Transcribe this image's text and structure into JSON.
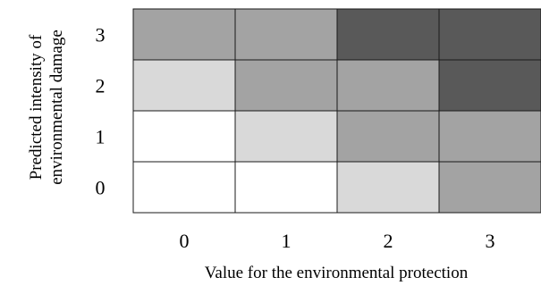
{
  "chart_data": {
    "type": "heatmap",
    "title": "",
    "xlabel": "Value for the environmental protection",
    "ylabel_lines": [
      "Predicted intensity of",
      "environmental damage"
    ],
    "x_categories": [
      "0",
      "1",
      "2",
      "3"
    ],
    "y_categories": [
      "0",
      "1",
      "2",
      "3"
    ],
    "levels": [
      0,
      1,
      2,
      3
    ],
    "level_colors": [
      "#ffffff",
      "#d9d9d9",
      "#a3a3a3",
      "#595959"
    ],
    "values": [
      [
        0,
        0,
        1,
        2
      ],
      [
        0,
        1,
        2,
        2
      ],
      [
        1,
        2,
        2,
        3
      ],
      [
        2,
        2,
        3,
        3
      ]
    ],
    "values_note_rows": "row index = y category (0 at bottom), column index = x category",
    "grid": true,
    "legend": "none"
  }
}
